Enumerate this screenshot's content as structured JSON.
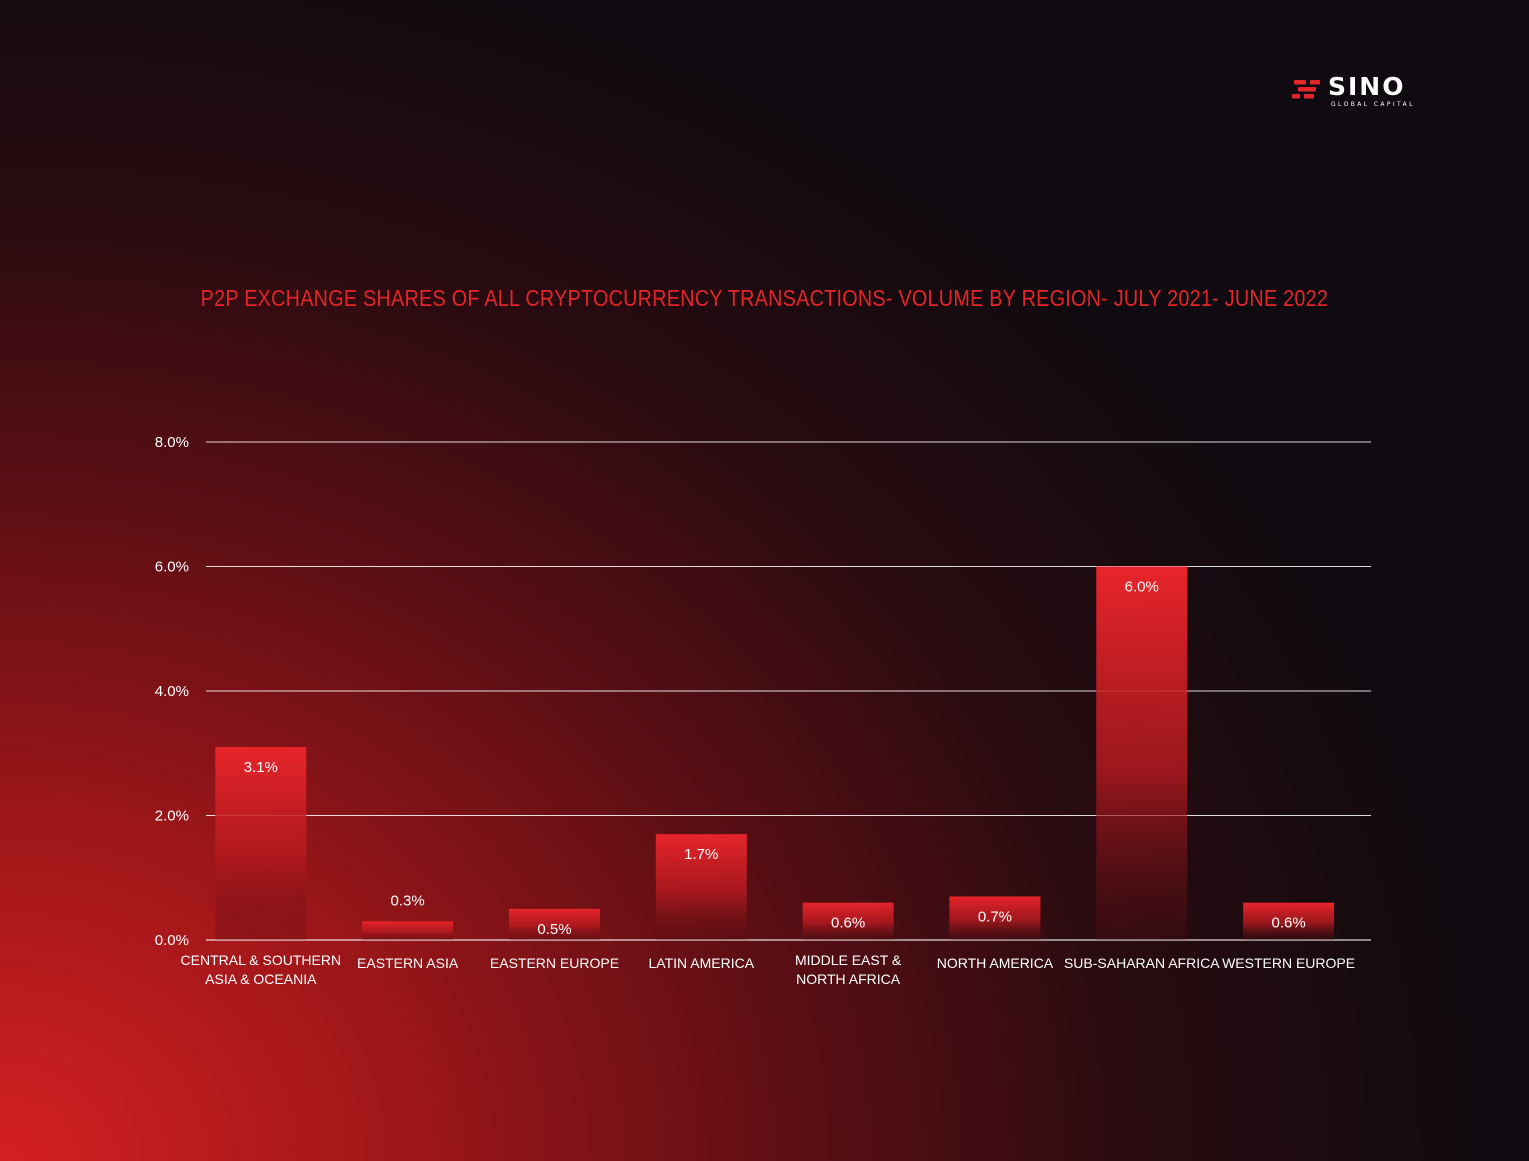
{
  "brand": {
    "name": "SINO",
    "tagline": "GLOBAL CAPITAL",
    "accent_color": "#e4262b"
  },
  "chart_data": {
    "type": "bar",
    "title": "P2P EXCHANGE SHARES OF ALL CRYPTOCURRENCY TRANSACTIONS- VOLUME BY REGION- JULY 2021- JUNE 2022",
    "categories": [
      [
        "CENTRAL & SOUTHERN",
        "ASIA & OCEANIA"
      ],
      [
        "EASTERN ASIA"
      ],
      [
        "EASTERN EUROPE"
      ],
      [
        "LATIN AMERICA"
      ],
      [
        "MIDDLE EAST &",
        "NORTH AFRICA"
      ],
      [
        "NORTH AMERICA"
      ],
      [
        "SUB-SAHARAN AFRICA"
      ],
      [
        "WESTERN EUROPE"
      ]
    ],
    "values": [
      3.1,
      0.3,
      0.5,
      1.7,
      0.6,
      0.7,
      6.0,
      0.6
    ],
    "value_labels": [
      "3.1%",
      "0.3%",
      "0.5%",
      "1.7%",
      "0.6%",
      "0.7%",
      "6.0%",
      "0.6%"
    ],
    "yticks": [
      0,
      2,
      4,
      6,
      8
    ],
    "ytick_labels": [
      "0.0%",
      "2.0%",
      "4.0%",
      "6.0%",
      "8.0%"
    ],
    "ylim": [
      0,
      8
    ],
    "grid": true,
    "legend": "none",
    "bar_color": "#e4262b"
  }
}
